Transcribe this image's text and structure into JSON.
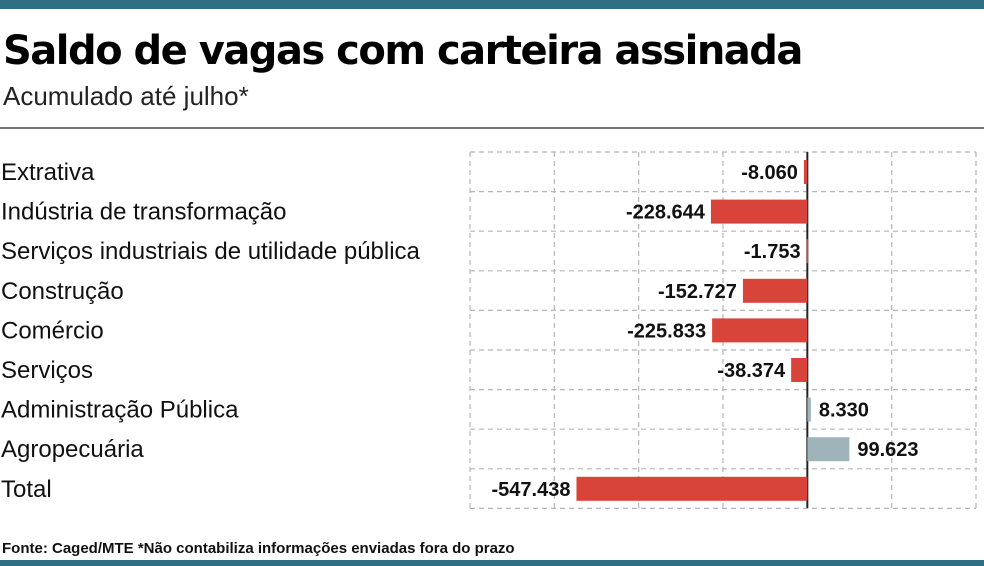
{
  "header": {
    "title": "Saldo de vagas com carteira assinada",
    "subtitle": "Acumulado até julho*"
  },
  "footer": {
    "source": "Fonte: Caged/MTE *Não contabiliza informações enviadas fora do prazo"
  },
  "colors": {
    "rule": "#2e6f86",
    "negative": "#d9443a",
    "positive": "#9fb3ba",
    "grid": "#b5b5b5",
    "zero_line": "#222222"
  },
  "chart_data": {
    "type": "bar",
    "orientation": "horizontal",
    "title": "Saldo de vagas com carteira assinada",
    "subtitle": "Acumulado até julho*",
    "categories": [
      "Extrativa",
      "Indústria de transformação",
      "Serviços industriais de utilidade pública",
      "Construção",
      "Comércio",
      "Serviços",
      "Administração Pública",
      "Agropecuária",
      "Total"
    ],
    "values": [
      -8060,
      -228644,
      -1753,
      -152727,
      -225833,
      -38374,
      8330,
      99623,
      -547438
    ],
    "value_labels": [
      "-8.060",
      "-228.644",
      "-1.753",
      "-152.727",
      "-225.833",
      "-38.374",
      "8.330",
      "99.623",
      "-547.438"
    ],
    "xlim": [
      -800000,
      400000
    ],
    "grid": true,
    "legend": "none"
  }
}
